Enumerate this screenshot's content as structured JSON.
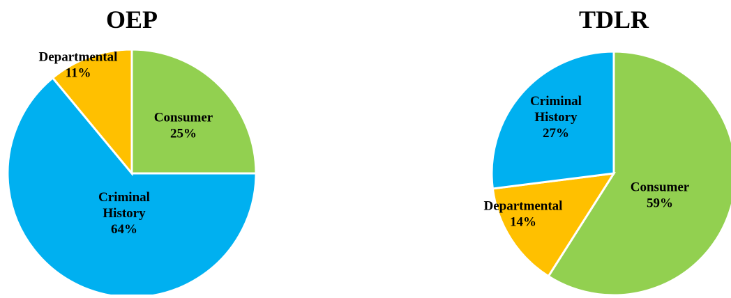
{
  "chart_data": [
    {
      "type": "pie",
      "title": "OEP",
      "slices": [
        {
          "label": "Consumer",
          "value": 25,
          "value_label": "25%",
          "color": "#92D050"
        },
        {
          "label": "Criminal History",
          "value": 64,
          "value_label": "64%",
          "color": "#00B0F0"
        },
        {
          "label": "Departmental",
          "value": 11,
          "value_label": "11%",
          "color": "#FFC000"
        }
      ],
      "start_angle_deg": 0,
      "direction": "clockwise",
      "legend": "none"
    },
    {
      "type": "pie",
      "title": "TDLR",
      "slices": [
        {
          "label": "Consumer",
          "value": 59,
          "value_label": "59%",
          "color": "#92D050"
        },
        {
          "label": "Departmental",
          "value": 14,
          "value_label": "14%",
          "color": "#FFC000"
        },
        {
          "label": "Criminal History",
          "value": 27,
          "value_label": "27%",
          "color": "#00B0F0"
        }
      ],
      "start_angle_deg": 0,
      "direction": "clockwise",
      "legend": "none"
    }
  ]
}
